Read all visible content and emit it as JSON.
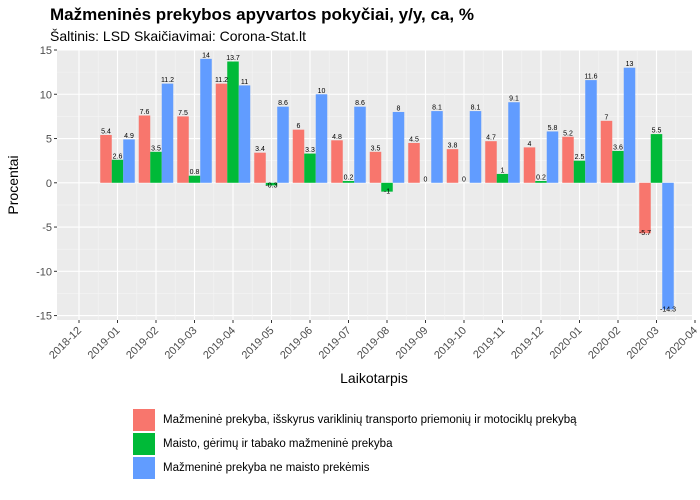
{
  "chart_data": {
    "type": "bar",
    "title": "Mažmeninės prekybos apyvartos pokyčiai, y/y, ca, %",
    "subtitle": "Šaltinis: LSD Skaičiavimai: Corona-Stat.lt",
    "xlabel": "Laikotarpis",
    "ylabel": "Procentai",
    "ylim": [
      -15.5,
      15
    ],
    "yticks": [
      -15,
      -10,
      -5,
      0,
      5,
      10,
      15
    ],
    "xtick_labels": [
      "2018-12",
      "2019-01",
      "2019-02",
      "2019-03",
      "2019-04",
      "2019-05",
      "2019-06",
      "2019-07",
      "2019-08",
      "2019-09",
      "2019-10",
      "2019-11",
      "2019-12",
      "2020-01",
      "2020-02",
      "2020-03",
      "2020-04"
    ],
    "categories": [
      "2019-01",
      "2019-02",
      "2019-03",
      "2019-04",
      "2019-05",
      "2019-06",
      "2019-07",
      "2019-08",
      "2019-09",
      "2019-10",
      "2019-11",
      "2019-12",
      "2020-01",
      "2020-02",
      "2020-03"
    ],
    "series": [
      {
        "name": "Mažmeninė prekyba, išskyrus variklinių transporto priemonių ir motociklų prekybą",
        "color": "#F8766D",
        "values": [
          5.4,
          7.6,
          7.5,
          11.2,
          3.4,
          6,
          4.8,
          3.5,
          4.5,
          3.8,
          4.7,
          4,
          5.2,
          7,
          -5.7
        ],
        "labels": [
          "5.4",
          "7.6",
          "7.5",
          "11.2",
          "3.4",
          "6",
          "4.8",
          "3.5",
          "4.5",
          "3.8",
          "4.7",
          "4",
          "5.2",
          "7",
          "-5.7"
        ]
      },
      {
        "name": "Maisto, gėrimų ir tabako mažmeninė prekyba",
        "color": "#00BA38",
        "values": [
          2.6,
          3.5,
          0.8,
          13.7,
          -0.3,
          3.3,
          0.2,
          -1,
          0,
          0,
          1,
          0.2,
          2.5,
          3.6,
          5.5
        ],
        "labels": [
          "2.6",
          "3.5",
          "0.8",
          "13.7",
          "-0.3",
          "3.3",
          "0.2",
          "-1",
          "0",
          "0",
          "1",
          "0.2",
          "2.5",
          "3.6",
          "5.5"
        ]
      },
      {
        "name": "Mažmeninė prekyba ne maisto prekėmis",
        "color": "#619CFF",
        "values": [
          4.9,
          11.2,
          14,
          11,
          8.6,
          10,
          8.6,
          8,
          8.1,
          8.1,
          9.1,
          5.8,
          11.6,
          13,
          -14.3
        ],
        "labels": [
          "4.9",
          "11.2",
          "14",
          "11",
          "8.6",
          "10",
          "8.6",
          "8",
          "8.1",
          "8.1",
          "9.1",
          "5.8",
          "11.6",
          "13",
          "-14.3"
        ]
      }
    ],
    "grid": true,
    "panel_background": "#EBEBEB",
    "legend_position": "bottom"
  }
}
